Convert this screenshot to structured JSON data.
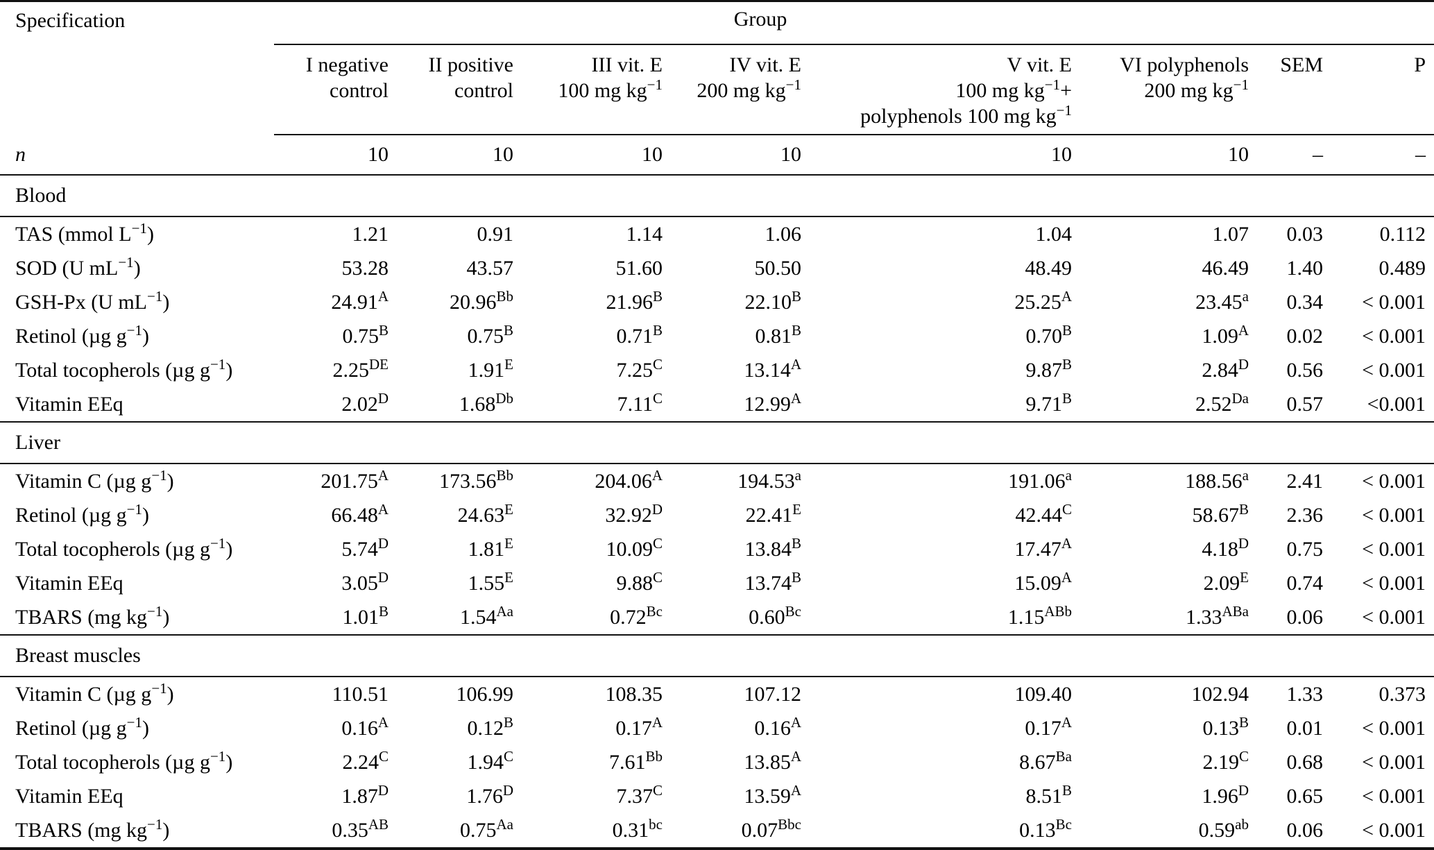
{
  "table": {
    "spec_header": "Specification",
    "group_header": "Group",
    "columns": [
      {
        "lines": [
          "I negative",
          "control"
        ]
      },
      {
        "lines": [
          "II positive",
          "control"
        ]
      },
      {
        "lines": [
          "III vit. E",
          "100 mg kg^{−1}"
        ]
      },
      {
        "lines": [
          "IV vit. E",
          "200 mg kg^{−1}"
        ]
      },
      {
        "lines": [
          "V vit. E",
          "100 mg kg^{−1}+",
          "polyphenols 100 mg kg^{−1}"
        ]
      },
      {
        "lines": [
          "VI polyphenols",
          "200 mg kg^{−1}"
        ]
      },
      {
        "lines": [
          "SEM"
        ]
      },
      {
        "lines": [
          "P"
        ]
      }
    ],
    "n_row": {
      "label": "n",
      "values": [
        "10",
        "10",
        "10",
        "10",
        "10",
        "10",
        "–",
        "–"
      ]
    },
    "sections": [
      {
        "name": "Blood",
        "rows": [
          {
            "label": "TAS (mmol L^{−1})",
            "values": [
              "1.21",
              "0.91",
              "1.14",
              "1.06",
              "1.04",
              "1.07",
              "0.03",
              "0.112"
            ]
          },
          {
            "label": "SOD (U mL^{−1})",
            "values": [
              "53.28",
              "43.57",
              "51.60",
              "50.50",
              "48.49",
              "46.49",
              "1.40",
              "0.489"
            ]
          },
          {
            "label": "GSH-Px (U mL^{−1})",
            "values": [
              "24.91^{A}",
              "20.96^{Bb}",
              "21.96^{B}",
              "22.10^{B}",
              "25.25^{A}",
              "23.45^{a}",
              "0.34",
              "< 0.001"
            ]
          },
          {
            "label": "Retinol (µg g^{−1})",
            "values": [
              "0.75^{B}",
              "0.75^{B}",
              "0.71^{B}",
              "0.81^{B}",
              "0.70^{B}",
              "1.09^{A}",
              "0.02",
              "< 0.001"
            ]
          },
          {
            "label": "Total tocopherols (µg g^{−1})",
            "values": [
              "2.25^{DE}",
              "1.91^{E}",
              "7.25^{C}",
              "13.14^{A}",
              "9.87^{B}",
              "2.84^{D}",
              "0.56",
              "< 0.001"
            ]
          },
          {
            "label": "Vitamin EEq",
            "values": [
              "2.02^{D}",
              "1.68^{Db}",
              "7.11^{C}",
              "12.99^{A}",
              "9.71^{B}",
              "2.52^{Da}",
              "0.57",
              "<0.001"
            ]
          }
        ]
      },
      {
        "name": "Liver",
        "rows": [
          {
            "label": "Vitamin C (µg g^{−1})",
            "values": [
              "201.75^{A}",
              "173.56^{Bb}",
              "204.06^{A}",
              "194.53^{a}",
              "191.06^{a}",
              "188.56^{a}",
              "2.41",
              "< 0.001"
            ]
          },
          {
            "label": "Retinol (µg g^{−1})",
            "values": [
              "66.48^{A}",
              "24.63^{E}",
              "32.92^{D}",
              "22.41^{E}",
              "42.44^{C}",
              "58.67^{B}",
              "2.36",
              "< 0.001"
            ]
          },
          {
            "label": "Total tocopherols (µg g^{−1})",
            "values": [
              "5.74^{D}",
              "1.81^{E}",
              "10.09^{C}",
              "13.84^{B}",
              "17.47^{A}",
              "4.18^{D}",
              "0.75",
              "< 0.001"
            ]
          },
          {
            "label": "Vitamin EEq",
            "values": [
              "3.05^{D}",
              "1.55^{E}",
              "9.88^{C}",
              "13.74^{B}",
              "15.09^{A}",
              "2.09^{E}",
              "0.74",
              "< 0.001"
            ]
          },
          {
            "label": "TBARS (mg kg^{−1})",
            "values": [
              "1.01^{B}",
              "1.54^{Aa}",
              "0.72^{Bc}",
              "0.60^{Bc}",
              "1.15^{ABb}",
              "1.33^{ABa}",
              "0.06",
              "< 0.001"
            ]
          }
        ]
      },
      {
        "name": "Breast muscles",
        "rows": [
          {
            "label": "Vitamin C (µg g^{−1})",
            "values": [
              "110.51",
              "106.99",
              "108.35",
              "107.12",
              "109.40",
              "102.94",
              "1.33",
              "0.373"
            ]
          },
          {
            "label": "Retinol (µg g^{−1})",
            "values": [
              "0.16^{A}",
              "0.12^{B}",
              "0.17^{A}",
              "0.16^{A}",
              "0.17^{A}",
              "0.13^{B}",
              "0.01",
              "< 0.001"
            ]
          },
          {
            "label": "Total tocopherols (µg g^{−1})",
            "values": [
              "2.24^{C}",
              "1.94^{C}",
              "7.61^{Bb}",
              "13.85^{A}",
              "8.67^{Ba}",
              "2.19^{C}",
              "0.68",
              "< 0.001"
            ]
          },
          {
            "label": "Vitamin EEq",
            "values": [
              "1.87^{D}",
              "1.76^{D}",
              "7.37^{C}",
              "13.59^{A}",
              "8.51^{B}",
              "1.96^{D}",
              "0.65",
              "< 0.001"
            ]
          },
          {
            "label": "TBARS (mg kg^{−1})",
            "values": [
              "0.35^{AB}",
              "0.75^{Aa}",
              "0.31^{bc}",
              "0.07^{Bbc}",
              "0.13^{Bc}",
              "0.59^{ab}",
              "0.06",
              "< 0.001"
            ]
          }
        ]
      }
    ]
  }
}
